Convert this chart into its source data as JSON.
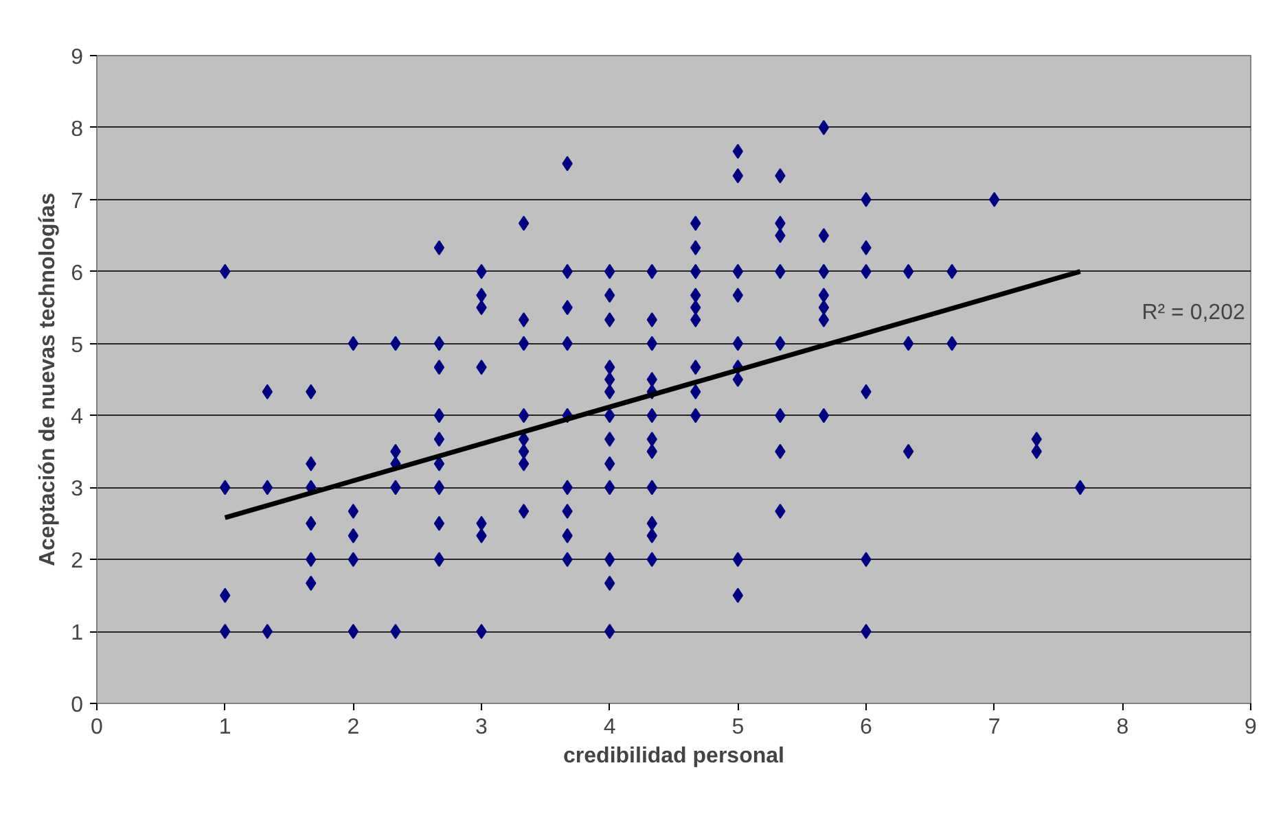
{
  "chart_data": {
    "type": "scatter",
    "xlabel": "credibilidad personal",
    "ylabel": "Aceptación de nuevas technologías",
    "xlim": [
      0,
      9
    ],
    "ylim": [
      0,
      9
    ],
    "xticks": [
      0,
      1,
      2,
      3,
      4,
      5,
      6,
      7,
      8,
      9
    ],
    "yticks": [
      0,
      1,
      2,
      3,
      4,
      5,
      6,
      7,
      8,
      9
    ],
    "grid": "y",
    "series": [
      {
        "marker": "diamond",
        "color": "#000080",
        "x": [
          1,
          1,
          1,
          1,
          1.33,
          1.33,
          1.33,
          1.67,
          1.67,
          1.67,
          1.67,
          1.67,
          1.67,
          2,
          2,
          2,
          2,
          2,
          2.33,
          2.33,
          2.33,
          2.33,
          2.33,
          2.67,
          2.67,
          2.67,
          2.67,
          2.67,
          2.67,
          2.67,
          2.67,
          2.67,
          3,
          3,
          3,
          3,
          3,
          3,
          3,
          3.33,
          3.33,
          3.33,
          3.33,
          3.33,
          3.33,
          3.33,
          3.33,
          3.67,
          3.67,
          3.67,
          3.67,
          3.67,
          3.67,
          3.67,
          3.67,
          3.67,
          4,
          4,
          4,
          4,
          4,
          4,
          4,
          4,
          4,
          4,
          4,
          4,
          4,
          4.33,
          4.33,
          4.33,
          4.33,
          4.33,
          4.33,
          4.33,
          4.33,
          4.33,
          4.33,
          4.33,
          4.33,
          4.67,
          4.67,
          4.67,
          4.67,
          4.67,
          4.67,
          4.67,
          4.67,
          4.67,
          5,
          5,
          5,
          5,
          5,
          5,
          5,
          5,
          5,
          5.33,
          5.33,
          5.33,
          5.33,
          5.33,
          5.33,
          5.33,
          5.33,
          5.67,
          5.67,
          5.67,
          5.67,
          5.67,
          5.67,
          5.67,
          6,
          6,
          6,
          6,
          6,
          6,
          6.33,
          6.33,
          6.33,
          6.67,
          6.67,
          7,
          7.33,
          7.33,
          7.67
        ],
        "values": [
          6,
          3,
          1.5,
          1,
          4.33,
          3,
          1,
          4.33,
          3.33,
          3,
          2.5,
          2,
          1.67,
          5,
          2.67,
          2.33,
          2,
          1,
          5,
          3.5,
          3.33,
          3,
          1,
          6.33,
          5,
          4.67,
          4,
          3.67,
          3.33,
          3,
          2.5,
          2,
          6,
          5.67,
          5.5,
          4.67,
          2.5,
          2.33,
          1,
          6.67,
          5.33,
          5,
          4,
          3.67,
          3.5,
          3.33,
          2.67,
          7.5,
          6,
          5.5,
          5,
          4,
          3,
          2.67,
          2.33,
          2,
          6,
          5.67,
          5.33,
          4.67,
          4.5,
          4.33,
          4,
          3.67,
          3.33,
          3,
          2,
          1.67,
          1,
          6,
          5.33,
          5,
          4.5,
          4.33,
          4,
          3.67,
          3.5,
          3,
          2.5,
          2.33,
          2,
          6.67,
          6.33,
          6,
          5.67,
          5.5,
          5.33,
          4.67,
          4.33,
          4,
          7.67,
          7.33,
          6,
          5.67,
          5,
          4.67,
          4.5,
          2,
          1.5,
          7.33,
          6.67,
          6.5,
          6,
          5,
          4,
          3.5,
          2.67,
          8,
          6.5,
          6,
          5.67,
          5.5,
          5.33,
          4,
          7,
          6.33,
          6,
          4.33,
          2,
          1,
          6,
          5,
          3.5,
          6,
          5,
          7,
          3.67,
          3.5,
          3
        ]
      },
      {
        "type": "line",
        "color": "#000000",
        "x": [
          1,
          7.67
        ],
        "values": [
          2.58,
          6.0
        ]
      }
    ],
    "annotations": [
      "R² = 0,202"
    ]
  }
}
